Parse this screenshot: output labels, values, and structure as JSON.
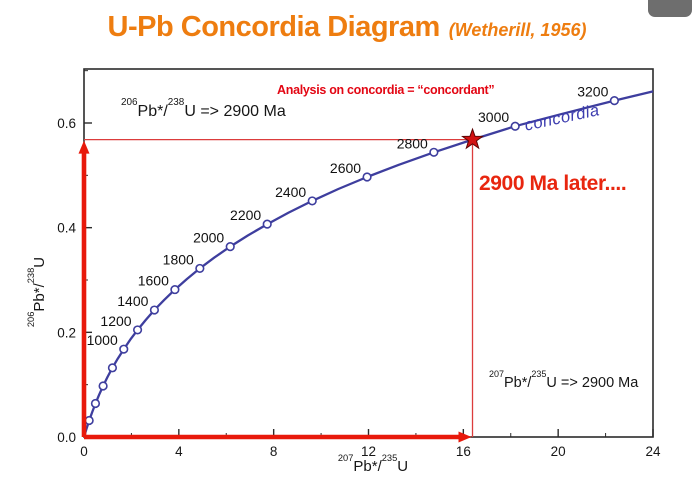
{
  "title": {
    "main": "U-Pb Concordia Diagram",
    "source": "(Wetherill, 1956)",
    "color": "#ee7d10"
  },
  "window": {
    "overlay_tab_icon": "window-control-tab"
  },
  "annotations": {
    "concordant": {
      "text": "Analysis on concordia = “concordant”",
      "color": "#e30613"
    },
    "y_projection": {
      "sup1": "206",
      "mid": "Pb*/",
      "sup2": "238",
      "rest": "U => 2900 Ma"
    },
    "x_projection": {
      "sup1": "207",
      "mid": "Pb*/",
      "sup2": "235",
      "rest": "U => 2900 Ma"
    },
    "later": {
      "text": "2900 Ma later....",
      "color": "#e8260f"
    },
    "curve_label": {
      "text": "concordia",
      "color": "#3c3caf"
    }
  },
  "axes": {
    "xlabel": {
      "sup1": "207",
      "mid": "Pb*/",
      "sup2": "235",
      "rest": "U"
    },
    "ylabel": {
      "sup1": "206",
      "mid": "Pb*/",
      "sup2": "238",
      "rest": "U"
    }
  },
  "chart_data": {
    "type": "line",
    "title": "U-Pb Concordia Diagram (Wetherill, 1956)",
    "xlabel": "207Pb*/235U",
    "ylabel": "206Pb*/238U",
    "xlim": [
      0,
      24
    ],
    "ylim": [
      0,
      0.703
    ],
    "x_major_ticks": [
      0,
      4,
      8,
      12,
      16,
      20,
      24
    ],
    "x_minor_ticks": [
      2,
      6,
      10,
      14,
      18,
      22
    ],
    "y_major_ticks": [
      0,
      0.2,
      0.4,
      0.6
    ],
    "y_minor_ticks": [
      0.1,
      0.3,
      0.5,
      0.7
    ],
    "grid": false,
    "curve_color": "#3e3e9e",
    "marker_fill": "#ffffff",
    "accent_red": "#e8190b",
    "crosshair_red": "#dc3c3c",
    "star_fill": "#d21212",
    "star_stroke": "#5c0303",
    "curve": [
      [
        0,
        0
      ],
      [
        0.104,
        0.0156
      ],
      [
        0.218,
        0.0315
      ],
      [
        0.344,
        0.0476
      ],
      [
        0.483,
        0.064
      ],
      [
        0.636,
        0.0807
      ],
      [
        0.806,
        0.0975
      ],
      [
        0.993,
        0.1147
      ],
      [
        1.199,
        0.1322
      ],
      [
        1.426,
        0.1499
      ],
      [
        1.677,
        0.1678
      ],
      [
        1.955,
        0.1861
      ],
      [
        2.26,
        0.2046
      ],
      [
        2.598,
        0.2234
      ],
      [
        2.97,
        0.2426
      ],
      [
        3.381,
        0.262
      ],
      [
        3.834,
        0.2817
      ],
      [
        4.334,
        0.3018
      ],
      [
        4.886,
        0.3221
      ],
      [
        5.496,
        0.3428
      ],
      [
        6.168,
        0.3638
      ],
      [
        6.91,
        0.3851
      ],
      [
        7.728,
        0.4067
      ],
      [
        8.631,
        0.4287
      ],
      [
        9.627,
        0.4511
      ],
      [
        10.727,
        0.4738
      ],
      [
        11.94,
        0.4968
      ],
      [
        13.279,
        0.5201
      ],
      [
        14.757,
        0.544
      ],
      [
        16.387,
        0.5682
      ],
      [
        18.187,
        0.5938
      ],
      [
        20.179,
        0.6175
      ],
      [
        22.372,
        0.6428
      ],
      [
        24,
        0.6603
      ]
    ],
    "markers": [
      {
        "age": 200,
        "x": 0.218,
        "y": 0.0315
      },
      {
        "age": 400,
        "x": 0.483,
        "y": 0.064
      },
      {
        "age": 600,
        "x": 0.806,
        "y": 0.0975
      },
      {
        "age": 800,
        "x": 1.199,
        "y": 0.1322
      },
      {
        "age": 1000,
        "x": 1.677,
        "y": 0.1678,
        "label": "1000"
      },
      {
        "age": 1200,
        "x": 2.26,
        "y": 0.2046,
        "label": "1200"
      },
      {
        "age": 1400,
        "x": 2.97,
        "y": 0.2426,
        "label": "1400"
      },
      {
        "age": 1600,
        "x": 3.834,
        "y": 0.2817,
        "label": "1600"
      },
      {
        "age": 1800,
        "x": 4.886,
        "y": 0.3221,
        "label": "1800"
      },
      {
        "age": 2000,
        "x": 6.168,
        "y": 0.3638,
        "label": "2000"
      },
      {
        "age": 2200,
        "x": 7.728,
        "y": 0.4067,
        "label": "2200"
      },
      {
        "age": 2400,
        "x": 9.627,
        "y": 0.4511,
        "label": "2400"
      },
      {
        "age": 2600,
        "x": 11.94,
        "y": 0.4968,
        "label": "2600"
      },
      {
        "age": 2800,
        "x": 14.757,
        "y": 0.544,
        "label": "2800"
      },
      {
        "age": 3000,
        "x": 18.187,
        "y": 0.5938,
        "label": "3000"
      },
      {
        "age": 3200,
        "x": 22.372,
        "y": 0.6428,
        "label": "3200"
      }
    ],
    "star_point": {
      "age": 2900,
      "x": 16.387,
      "y": 0.5682
    },
    "crosshair": {
      "x": 16.387,
      "y": 0.5682
    },
    "axis_arrows": {
      "x_extent": 16.387,
      "y_extent": 0.5682
    }
  }
}
